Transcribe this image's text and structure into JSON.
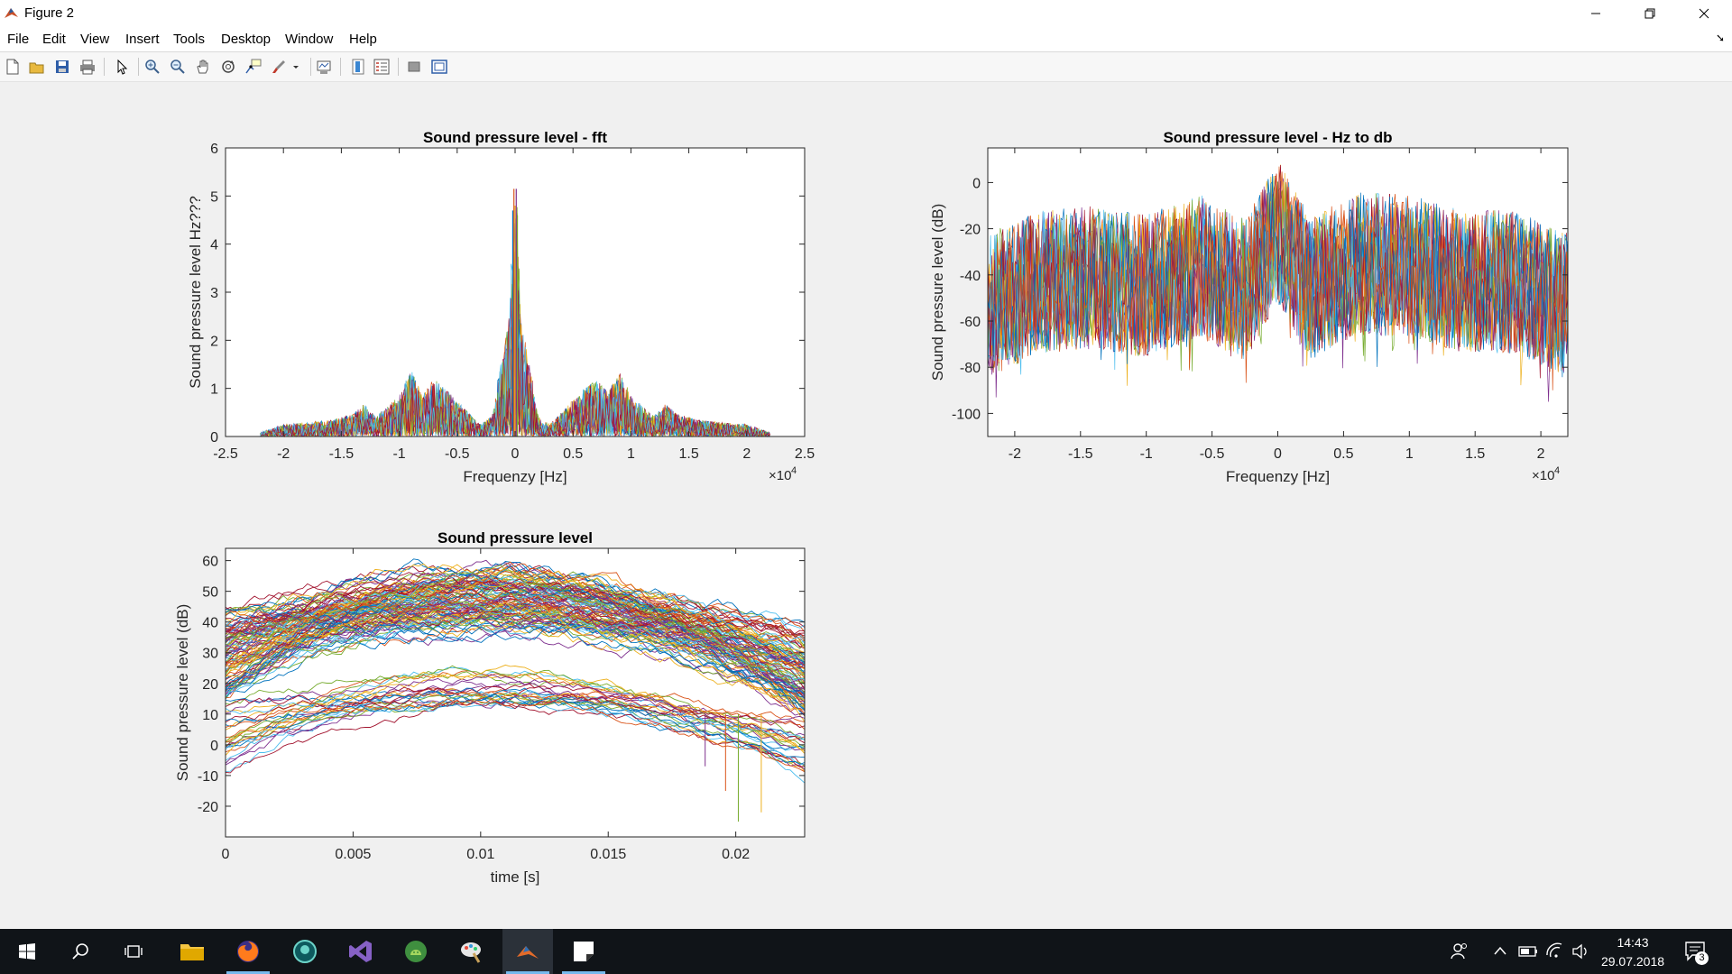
{
  "window": {
    "title": "Figure 2",
    "controls": {
      "minimize": "—",
      "maximize": "❐",
      "close": "✕"
    }
  },
  "menu": [
    "File",
    "Edit",
    "View",
    "Insert",
    "Tools",
    "Desktop",
    "Window",
    "Help"
  ],
  "toolbar": {
    "buttons": [
      {
        "name": "new-figure-icon"
      },
      {
        "name": "open-file-icon"
      },
      {
        "name": "save-icon"
      },
      {
        "name": "print-icon"
      },
      {
        "name": "pointer-icon"
      },
      {
        "name": "zoom-in-icon"
      },
      {
        "name": "zoom-out-icon"
      },
      {
        "name": "pan-icon"
      },
      {
        "name": "rotate-3d-icon"
      },
      {
        "name": "data-cursor-icon"
      },
      {
        "name": "brush-icon"
      },
      {
        "name": "link-plot-icon"
      },
      {
        "name": "colorbar-icon"
      },
      {
        "name": "legend-icon"
      },
      {
        "name": "hide-plot-tools-icon"
      },
      {
        "name": "show-plot-tools-icon"
      }
    ]
  },
  "chart_data": [
    {
      "type": "line",
      "title": "Sound pressure level - fft",
      "xlabel": "Frequenzy [Hz]",
      "ylabel": "Sound pressure level Hz???",
      "x_exponent": "×10",
      "x_exponent_power": "4",
      "xlim": [
        -25000,
        25000
      ],
      "ylim": [
        0,
        6
      ],
      "x_ticks": [
        "-2.5",
        "-2",
        "-1.5",
        "-1",
        "-0.5",
        "0",
        "0.5",
        "1",
        "1.5",
        "2",
        "2.5"
      ],
      "y_ticks": [
        "0",
        "1",
        "2",
        "3",
        "4",
        "5",
        "6"
      ],
      "grid": false,
      "series_count": "many",
      "envelope": {
        "x": [
          -22000,
          -20000,
          -18000,
          -16000,
          -14000,
          -13000,
          -12000,
          -10000,
          -9000,
          -8000,
          -7000,
          -6000,
          -5000,
          -4000,
          -3000,
          -2000,
          -1500,
          -1000,
          -500,
          -200,
          0,
          200,
          500,
          1000,
          1500,
          2000,
          3000,
          4000,
          5000,
          6000,
          7000,
          8000,
          9000,
          10000,
          12000,
          13000,
          14000,
          16000,
          18000,
          20000,
          22000
        ],
        "y": [
          0.1,
          0.3,
          0.35,
          0.4,
          0.55,
          0.8,
          0.5,
          1.0,
          1.65,
          1.1,
          1.4,
          1.2,
          0.9,
          0.6,
          0.3,
          0.5,
          1.2,
          1.8,
          2.5,
          4.8,
          5.2,
          4.8,
          2.5,
          1.8,
          1.2,
          0.5,
          0.3,
          0.6,
          0.9,
          1.2,
          1.4,
          1.1,
          1.65,
          1.0,
          0.5,
          0.8,
          0.55,
          0.4,
          0.35,
          0.3,
          0.1
        ]
      }
    },
    {
      "type": "line",
      "title": "Sound pressure level - Hz to db",
      "xlabel": "Frequenzy [Hz]",
      "ylabel": "Sound pressure level (dB)",
      "x_exponent": "×10",
      "x_exponent_power": "4",
      "xlim": [
        -22050,
        22050
      ],
      "ylim": [
        -110,
        15
      ],
      "x_ticks": [
        "-2",
        "-1.5",
        "-1",
        "-0.5",
        "0",
        "0.5",
        "1",
        "1.5",
        "2"
      ],
      "y_ticks": [
        "-100",
        "-80",
        "-60",
        "-40",
        "-20",
        "0"
      ],
      "grid": false,
      "series_count": "many",
      "band": {
        "upper_approx": -5,
        "lower_approx": -85,
        "peak_at_0": 15
      }
    },
    {
      "type": "line",
      "title": "Sound pressure level",
      "xlabel": "time [s]",
      "ylabel": "Sound pressure level (dB)",
      "xlim": [
        0,
        0.0227
      ],
      "ylim": [
        -30,
        64
      ],
      "x_ticks": [
        "0",
        "0.005",
        "0.01",
        "0.015",
        "0.02"
      ],
      "y_ticks": [
        "-20",
        "-10",
        "0",
        "10",
        "20",
        "30",
        "40",
        "50",
        "60"
      ],
      "grid": false,
      "series_count": "many",
      "upper_group": {
        "start": [
          15,
          45
        ],
        "peak": [
          35,
          60
        ],
        "end": [
          10,
          38
        ],
        "peak_time": 0.0105
      },
      "lower_group": {
        "start": [
          -10,
          15
        ],
        "peak": [
          12,
          25
        ],
        "end": [
          -10,
          8
        ],
        "peak_time": 0.0105
      }
    }
  ],
  "taskbar": {
    "apps": [
      {
        "name": "start-icon"
      },
      {
        "name": "search-icon"
      },
      {
        "name": "task-view-icon"
      },
      {
        "name": "file-explorer-icon"
      },
      {
        "name": "firefox-icon"
      },
      {
        "name": "gitkraken-icon"
      },
      {
        "name": "visual-studio-icon"
      },
      {
        "name": "android-studio-icon"
      },
      {
        "name": "paint-app-icon"
      },
      {
        "name": "matlab-icon"
      },
      {
        "name": "sticky-notes-icon"
      }
    ],
    "time": "14:43",
    "date": "29.07.2018",
    "notifications": "3"
  }
}
